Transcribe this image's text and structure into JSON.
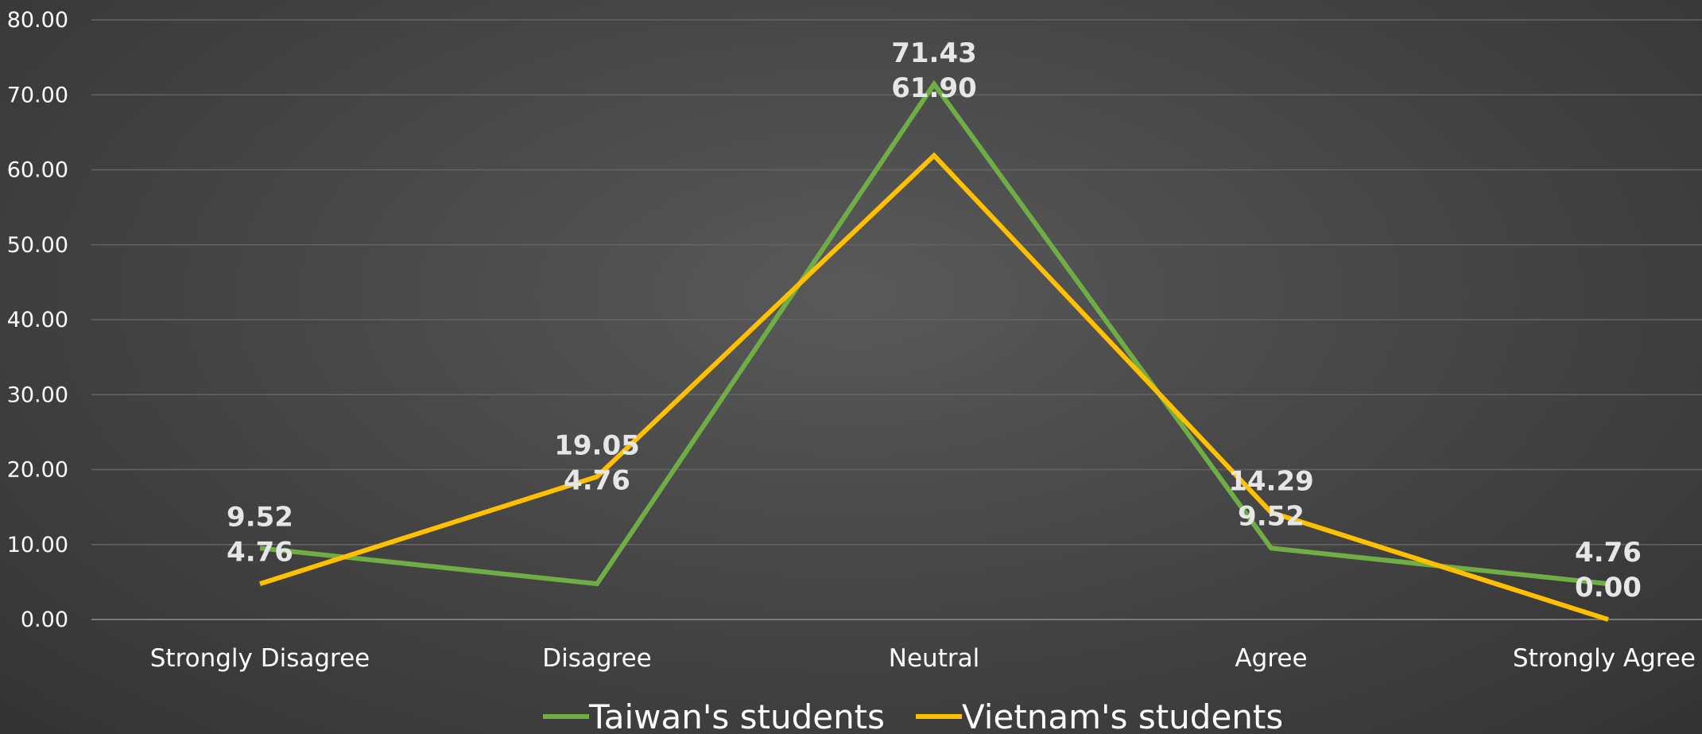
{
  "chart_data": {
    "type": "line",
    "categories": [
      "Strongly Disagree",
      "Disagree",
      "Neutral",
      "Agree",
      "Strongly Agree"
    ],
    "series": [
      {
        "name": "Taiwan's students",
        "color": "#6fae45",
        "values": [
          9.52,
          4.76,
          71.43,
          9.52,
          4.76
        ]
      },
      {
        "name": "Vietnam's students",
        "color": "#ffc000",
        "values": [
          4.76,
          19.05,
          61.9,
          14.29,
          0.0
        ]
      }
    ],
    "ylim": [
      0,
      80
    ],
    "yticks": [
      "0.00",
      "10.00",
      "20.00",
      "30.00",
      "40.00",
      "50.00",
      "60.00",
      "70.00",
      "80.00"
    ],
    "data_labels": [
      {
        "category_index": 0,
        "lines": [
          "9.52",
          "4.76"
        ]
      },
      {
        "category_index": 1,
        "lines": [
          "19.05",
          "4.76"
        ]
      },
      {
        "category_index": 2,
        "lines": [
          "71.43",
          "61.90"
        ]
      },
      {
        "category_index": 3,
        "lines": [
          "14.29",
          "9.52"
        ]
      },
      {
        "category_index": 4,
        "lines": [
          "4.76",
          "0.00"
        ]
      }
    ],
    "grid": true,
    "legend": "bottom",
    "title": "",
    "xlabel": "",
    "ylabel": ""
  }
}
